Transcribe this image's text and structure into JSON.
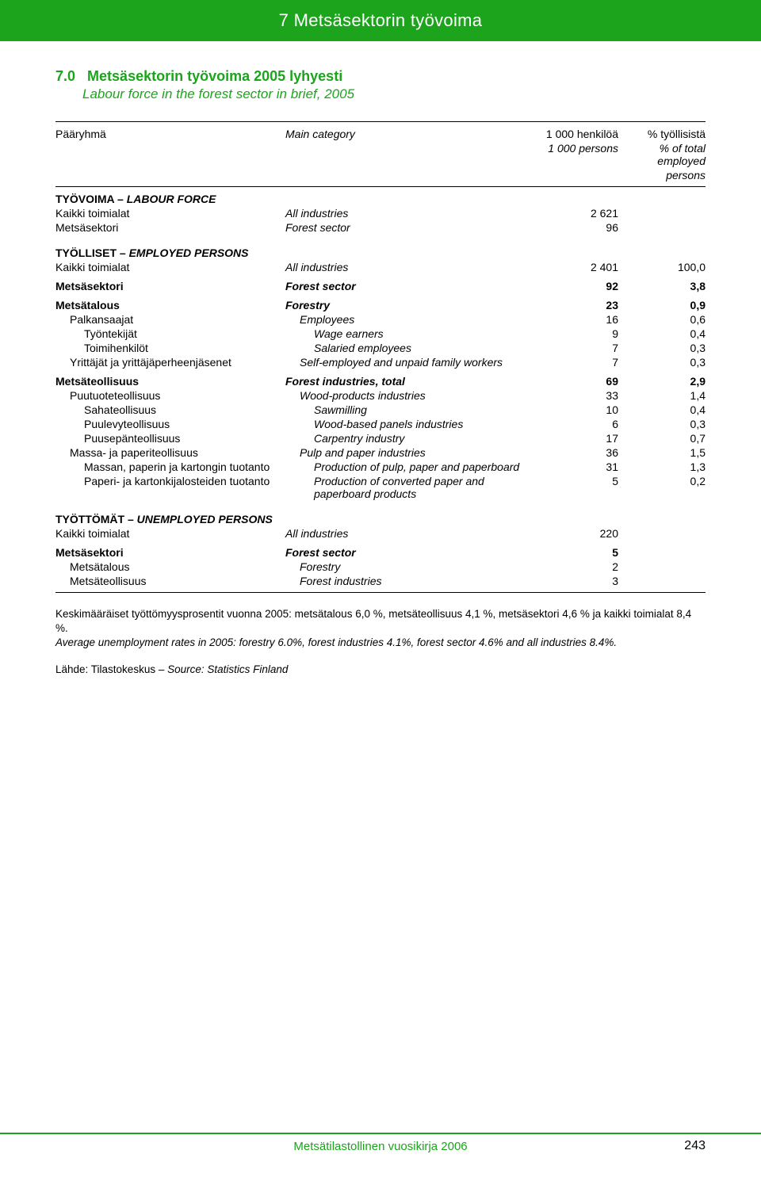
{
  "header": {
    "title": "7 Metsäsektorin työvoima"
  },
  "section": {
    "num": "7.0",
    "title_fi": "Metsäsektorin työvoima 2005 lyhyesti",
    "title_en": "Labour force in the forest sector in brief, 2005"
  },
  "columns": {
    "c1_fi": "Pääryhmä",
    "c1_en": "Main category",
    "c2a_fi": "1 000 henkilöä",
    "c2a_en": "1 000 persons",
    "c3a_fi": "% työllisistä",
    "c3a_en": "% of total employed",
    "c3b_en": "persons"
  },
  "groups": {
    "labour": {
      "fi": "TYÖVOIMA – ",
      "en": "LABOUR FORCE"
    },
    "employed": {
      "fi": "TYÖLLISET – ",
      "en": "EMPLOYED PERSONS"
    },
    "unemployed": {
      "fi": "TYÖTTÖMÄT – ",
      "en": "UNEMPLOYED PERSONS"
    }
  },
  "rows": {
    "labour": [
      {
        "fi": "Kaikki toimialat",
        "en": "All industries",
        "v1": "2 621",
        "v2": ""
      },
      {
        "fi": "Metsäsektori",
        "en": "Forest sector",
        "v1": "96",
        "v2": "",
        "it_en": true
      }
    ],
    "employed": [
      {
        "fi": "Kaikki toimialat",
        "en": "All industries",
        "v1": "2 401",
        "v2": "100,0"
      },
      {
        "fi": "Metsäsektori",
        "en": "Forest sector",
        "v1": "92",
        "v2": "3,8",
        "bold": true,
        "it_en": true
      },
      {
        "fi": "Metsätalous",
        "en": "Forestry",
        "v1": "23",
        "v2": "0,9",
        "bold": true,
        "it_en": true
      },
      {
        "fi": "Palkansaajat",
        "en": "Employees",
        "v1": "16",
        "v2": "0,6",
        "ind": 1,
        "it_en": true,
        "ind_en": 1
      },
      {
        "fi": "Työntekijät",
        "en": "Wage earners",
        "v1": "9",
        "v2": "0,4",
        "ind": 2,
        "it_en": true,
        "ind_en": 2
      },
      {
        "fi": "Toimihenkilöt",
        "en": "Salaried employees",
        "v1": "7",
        "v2": "0,3",
        "ind": 2,
        "it_en": true,
        "ind_en": 2
      },
      {
        "fi": "Yrittäjät ja yrittäjäperheenjäsenet",
        "en": "Self-employed and unpaid family workers",
        "v1": "7",
        "v2": "0,3",
        "ind": 1,
        "it_en": true,
        "ind_en": 1
      },
      {
        "fi": "Metsäteollisuus",
        "en": "Forest industries, total",
        "v1": "69",
        "v2": "2,9",
        "bold": true,
        "it_en": true
      },
      {
        "fi": "Puutuoteteollisuus",
        "en": "Wood-products industries",
        "v1": "33",
        "v2": "1,4",
        "ind": 1,
        "it_en": true,
        "ind_en": 1
      },
      {
        "fi": "Sahateollisuus",
        "en": "Sawmilling",
        "v1": "10",
        "v2": "0,4",
        "ind": 2,
        "it_en": true,
        "ind_en": 2
      },
      {
        "fi": "Puulevyteollisuus",
        "en": "Wood-based panels industries",
        "v1": "6",
        "v2": "0,3",
        "ind": 2,
        "it_en": true,
        "ind_en": 2
      },
      {
        "fi": "Puusepänteollisuus",
        "en": "Carpentry industry",
        "v1": "17",
        "v2": "0,7",
        "ind": 2,
        "it_en": true,
        "ind_en": 2
      },
      {
        "fi": "Massa- ja paperiteollisuus",
        "en": "Pulp and paper industries",
        "v1": "36",
        "v2": "1,5",
        "ind": 1,
        "it_en": true,
        "ind_en": 1
      },
      {
        "fi": "Massan, paperin ja kartongin tuotanto",
        "en": "Production of pulp, paper and paperboard",
        "v1": "31",
        "v2": "1,3",
        "ind": 2,
        "it_en": true,
        "ind_en": 2
      },
      {
        "fi": "Paperi- ja kartonkijalosteiden tuotanto",
        "en": "Production of converted paper and paperboard products",
        "v1": "5",
        "v2": "0,2",
        "ind": 2,
        "it_en": true,
        "ind_en": 2
      }
    ],
    "unemployed": [
      {
        "fi": "Kaikki toimialat",
        "en": "All industries",
        "v1": "220",
        "v2": ""
      },
      {
        "fi": "Metsäsektori",
        "en": "Forest sector",
        "v1": "5",
        "v2": "",
        "bold": true,
        "it_en": true
      },
      {
        "fi": "Metsätalous",
        "en": "Forestry",
        "v1": "2",
        "v2": "",
        "ind": 1,
        "it_en": true,
        "ind_en": 1
      },
      {
        "fi": "Metsäteollisuus",
        "en": "Forest industries",
        "v1": "3",
        "v2": "",
        "ind": 1,
        "it_en": true,
        "ind_en": 1
      }
    ]
  },
  "footnote": {
    "fi": "Keskimääräiset työttömyysprosentit vuonna 2005: metsätalous 6,0 %, metsäteollisuus 4,1 %, metsäsektori 4,6 % ja kaikki toimialat 8,4 %.",
    "en": "Average unemployment rates in 2005: forestry 6.0%, forest industries 4.1%, forest sector 4.6% and all industries 8.4%."
  },
  "source": {
    "fi": "Lähde: Tilastokeskus – ",
    "en": "Source: Statistics Finland"
  },
  "footer": {
    "center": "Metsätilastollinen vuosikirja 2006",
    "page": "243"
  },
  "colors": {
    "green": "#1ca41c",
    "text": "#000000",
    "bg": "#ffffff"
  }
}
